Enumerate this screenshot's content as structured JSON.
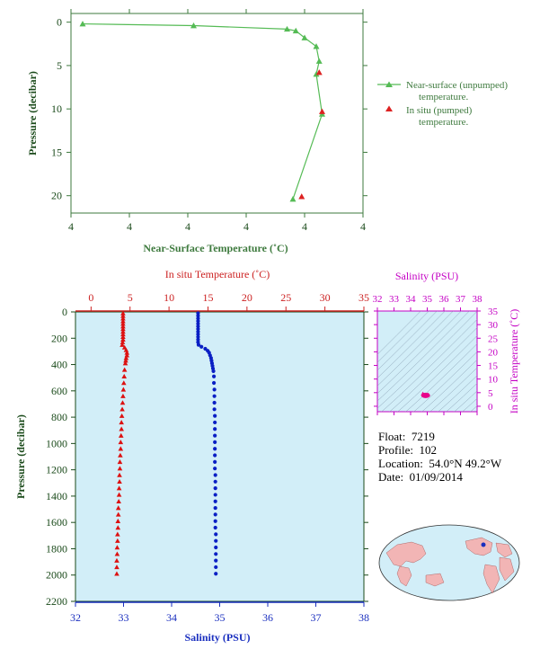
{
  "chart_data": [
    {
      "type": "line",
      "xlabel": "Near-Surface Temperature (˚C)",
      "ylabel": "Pressure (decibar)",
      "x_tick_labels": [
        "4",
        "4",
        "4",
        "4",
        "4",
        "4"
      ],
      "y_ticks": [
        0,
        5,
        10,
        15,
        20
      ],
      "ylim": [
        22,
        -1
      ],
      "legend": {
        "placement": "right"
      },
      "series": [
        {
          "name": "Near-surface (unpumped) temperature.",
          "color": "#55bb55",
          "marker": "triangle",
          "points": [
            {
              "x": 0.04,
              "y": 0.2
            },
            {
              "x": 0.42,
              "y": 0.4
            },
            {
              "x": 0.74,
              "y": 0.8
            },
            {
              "x": 0.77,
              "y": 1.0
            },
            {
              "x": 0.8,
              "y": 1.8
            },
            {
              "x": 0.84,
              "y": 2.8
            },
            {
              "x": 0.85,
              "y": 4.5
            },
            {
              "x": 0.84,
              "y": 6.0
            },
            {
              "x": 0.86,
              "y": 10.6
            },
            {
              "x": 0.76,
              "y": 20.4
            }
          ]
        },
        {
          "name": "In situ (pumped) temperature.",
          "color": "#dd2222",
          "marker": "triangle",
          "points": [
            {
              "x": 0.85,
              "y": 5.8
            },
            {
              "x": 0.86,
              "y": 10.3
            },
            {
              "x": 0.79,
              "y": 20.1
            }
          ]
        }
      ]
    },
    {
      "type": "line",
      "title_top": "In situ Temperature (˚C)",
      "xlabel": "Salinity (PSU)",
      "ylabel": "Pressure (decibar)",
      "x_bottom": {
        "ticks": [
          32,
          33,
          34,
          35,
          36,
          37,
          38
        ],
        "range": [
          32,
          38
        ]
      },
      "x_top": {
        "ticks": [
          0,
          5,
          10,
          15,
          20,
          25,
          30,
          35
        ],
        "range": [
          -2,
          35
        ]
      },
      "y_ticks": [
        0,
        200,
        400,
        600,
        800,
        1000,
        1200,
        1400,
        1600,
        1800,
        2000,
        2200
      ],
      "ylim": [
        2200,
        0
      ],
      "series": [
        {
          "name": "Temperature",
          "color": "#dd1111",
          "marker": "triangle",
          "axis": "top",
          "points": [
            {
              "p": 10,
              "v": 4.1
            },
            {
              "p": 30,
              "v": 4.1
            },
            {
              "p": 50,
              "v": 4.1
            },
            {
              "p": 70,
              "v": 4.1
            },
            {
              "p": 90,
              "v": 4.1
            },
            {
              "p": 110,
              "v": 4.1
            },
            {
              "p": 130,
              "v": 4.1
            },
            {
              "p": 150,
              "v": 4.1
            },
            {
              "p": 170,
              "v": 4.1
            },
            {
              "p": 190,
              "v": 4.1
            },
            {
              "p": 210,
              "v": 4.1
            },
            {
              "p": 230,
              "v": 4.05
            },
            {
              "p": 250,
              "v": 4.0
            },
            {
              "p": 270,
              "v": 4.3
            },
            {
              "p": 290,
              "v": 4.5
            },
            {
              "p": 310,
              "v": 4.6
            },
            {
              "p": 330,
              "v": 4.6
            },
            {
              "p": 350,
              "v": 4.5
            },
            {
              "p": 370,
              "v": 4.45
            },
            {
              "p": 390,
              "v": 4.4
            },
            {
              "p": 440,
              "v": 4.3
            },
            {
              "p": 490,
              "v": 4.25
            },
            {
              "p": 540,
              "v": 4.2
            },
            {
              "p": 590,
              "v": 4.15
            },
            {
              "p": 640,
              "v": 4.1
            },
            {
              "p": 690,
              "v": 4.05
            },
            {
              "p": 740,
              "v": 4.0
            },
            {
              "p": 790,
              "v": 3.95
            },
            {
              "p": 840,
              "v": 3.9
            },
            {
              "p": 890,
              "v": 3.9
            },
            {
              "p": 940,
              "v": 3.85
            },
            {
              "p": 990,
              "v": 3.8
            },
            {
              "p": 1040,
              "v": 3.8
            },
            {
              "p": 1090,
              "v": 3.75
            },
            {
              "p": 1140,
              "v": 3.7
            },
            {
              "p": 1190,
              "v": 3.7
            },
            {
              "p": 1240,
              "v": 3.65
            },
            {
              "p": 1290,
              "v": 3.65
            },
            {
              "p": 1340,
              "v": 3.6
            },
            {
              "p": 1390,
              "v": 3.6
            },
            {
              "p": 1440,
              "v": 3.55
            },
            {
              "p": 1490,
              "v": 3.5
            },
            {
              "p": 1540,
              "v": 3.5
            },
            {
              "p": 1590,
              "v": 3.45
            },
            {
              "p": 1640,
              "v": 3.45
            },
            {
              "p": 1690,
              "v": 3.4
            },
            {
              "p": 1740,
              "v": 3.4
            },
            {
              "p": 1790,
              "v": 3.35
            },
            {
              "p": 1840,
              "v": 3.35
            },
            {
              "p": 1890,
              "v": 3.3
            },
            {
              "p": 1940,
              "v": 3.3
            },
            {
              "p": 1990,
              "v": 3.3
            }
          ]
        },
        {
          "name": "Salinity",
          "color": "#0a1fc4",
          "marker": "circle",
          "axis": "bottom",
          "points": [
            {
              "p": 10,
              "v": 34.55
            },
            {
              "p": 30,
              "v": 34.55
            },
            {
              "p": 50,
              "v": 34.55
            },
            {
              "p": 70,
              "v": 34.55
            },
            {
              "p": 90,
              "v": 34.55
            },
            {
              "p": 110,
              "v": 34.55
            },
            {
              "p": 130,
              "v": 34.55
            },
            {
              "p": 150,
              "v": 34.55
            },
            {
              "p": 170,
              "v": 34.55
            },
            {
              "p": 190,
              "v": 34.55
            },
            {
              "p": 210,
              "v": 34.55
            },
            {
              "p": 230,
              "v": 34.55
            },
            {
              "p": 250,
              "v": 34.56
            },
            {
              "p": 265,
              "v": 34.62
            },
            {
              "p": 280,
              "v": 34.7
            },
            {
              "p": 295,
              "v": 34.75
            },
            {
              "p": 310,
              "v": 34.78
            },
            {
              "p": 330,
              "v": 34.8
            },
            {
              "p": 350,
              "v": 34.82
            },
            {
              "p": 370,
              "v": 34.83
            },
            {
              "p": 390,
              "v": 34.84
            },
            {
              "p": 410,
              "v": 34.85
            },
            {
              "p": 430,
              "v": 34.86
            },
            {
              "p": 450,
              "v": 34.87
            },
            {
              "p": 490,
              "v": 34.88
            },
            {
              "p": 540,
              "v": 34.88
            },
            {
              "p": 590,
              "v": 34.89
            },
            {
              "p": 640,
              "v": 34.89
            },
            {
              "p": 690,
              "v": 34.89
            },
            {
              "p": 740,
              "v": 34.89
            },
            {
              "p": 790,
              "v": 34.9
            },
            {
              "p": 840,
              "v": 34.9
            },
            {
              "p": 890,
              "v": 34.9
            },
            {
              "p": 940,
              "v": 34.9
            },
            {
              "p": 990,
              "v": 34.9
            },
            {
              "p": 1040,
              "v": 34.9
            },
            {
              "p": 1090,
              "v": 34.9
            },
            {
              "p": 1140,
              "v": 34.9
            },
            {
              "p": 1190,
              "v": 34.9
            },
            {
              "p": 1240,
              "v": 34.91
            },
            {
              "p": 1290,
              "v": 34.91
            },
            {
              "p": 1340,
              "v": 34.91
            },
            {
              "p": 1390,
              "v": 34.91
            },
            {
              "p": 1440,
              "v": 34.91
            },
            {
              "p": 1490,
              "v": 34.91
            },
            {
              "p": 1540,
              "v": 34.91
            },
            {
              "p": 1590,
              "v": 34.91
            },
            {
              "p": 1640,
              "v": 34.91
            },
            {
              "p": 1690,
              "v": 34.92
            },
            {
              "p": 1740,
              "v": 34.92
            },
            {
              "p": 1790,
              "v": 34.92
            },
            {
              "p": 1840,
              "v": 34.92
            },
            {
              "p": 1890,
              "v": 34.92
            },
            {
              "p": 1940,
              "v": 34.92
            },
            {
              "p": 1990,
              "v": 34.92
            }
          ]
        }
      ]
    },
    {
      "type": "scatter",
      "title_top": "Salinity (PSU)",
      "ylabel": "In situ Temperature (˚C)",
      "x_ticks": [
        32,
        33,
        34,
        35,
        36,
        37,
        38
      ],
      "y_ticks": [
        0,
        5,
        10,
        15,
        20,
        25,
        30,
        35
      ],
      "xlim": [
        32,
        38
      ],
      "ylim": [
        -2,
        35
      ],
      "color": "#e8008a",
      "cluster": {
        "salinity": 34.9,
        "temperature": 4.0
      }
    }
  ],
  "float_info": {
    "float_label": "Float:",
    "float_value": "7219",
    "profile_label": "Profile:",
    "profile_value": "102",
    "location_label": "Location:",
    "location_value": "54.0°N  49.2°W",
    "date_label": "Date:",
    "date_value": "01/09/2014"
  }
}
